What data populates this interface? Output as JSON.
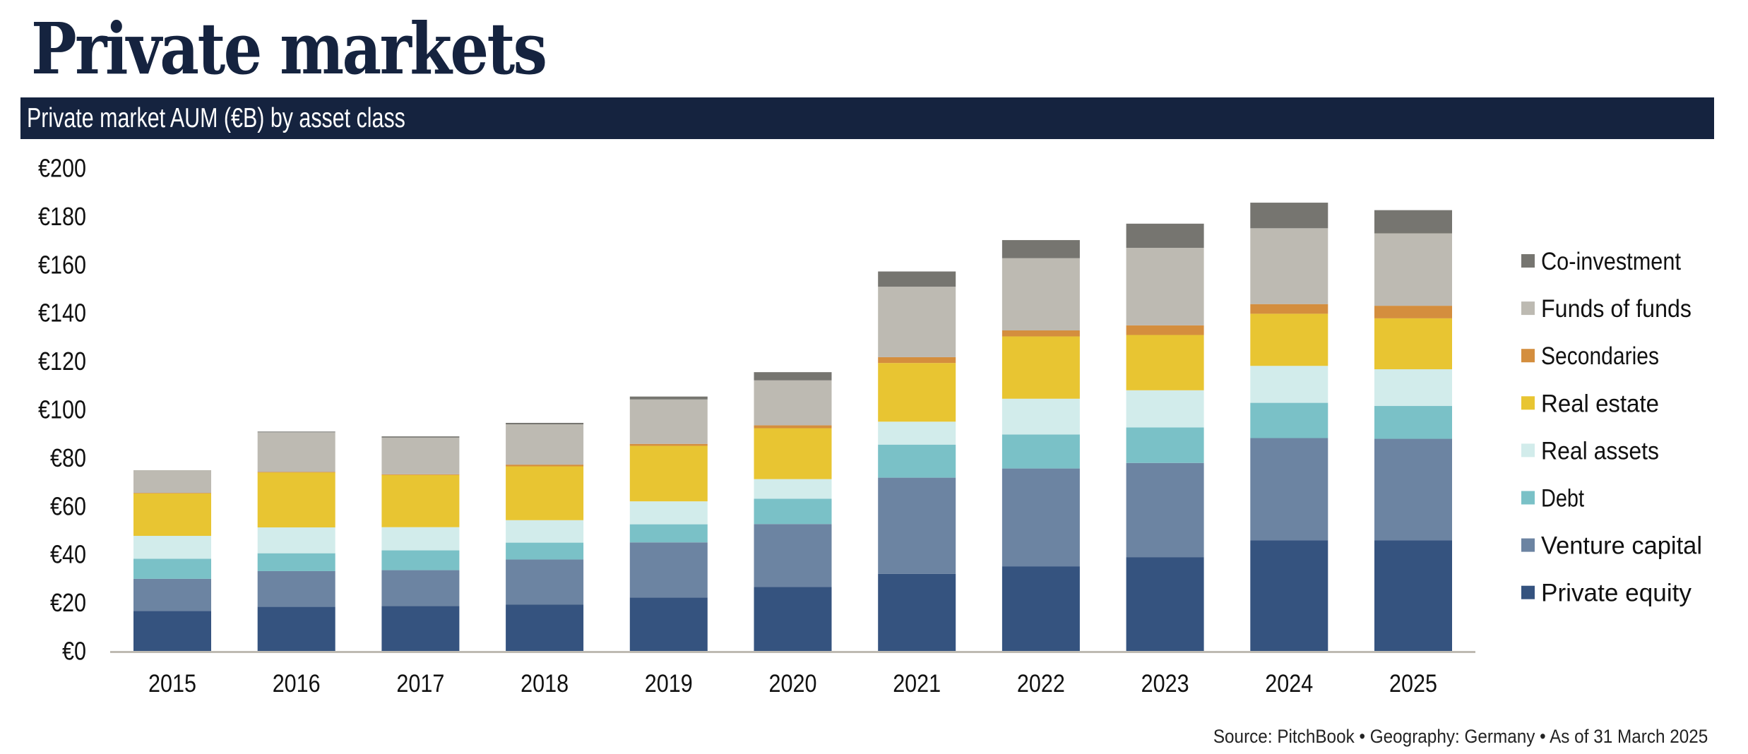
{
  "header": {
    "title": "Private markets",
    "chart_banner": "Private market AUM (€B) by asset class"
  },
  "footer": {
    "source": "Source: PitchBook • Geography: Germany • As of 31 March 2025"
  },
  "colors": {
    "title": "#15233F",
    "banner_bg": "#15233F",
    "axis": "#BEBAB2"
  },
  "chart_data": {
    "type": "bar",
    "stacked": true,
    "title": "Private market AUM (€B) by asset class",
    "xlabel": "",
    "ylabel": "",
    "ylim": [
      0,
      200
    ],
    "yticks": [
      0,
      20,
      40,
      60,
      80,
      100,
      120,
      140,
      160,
      180,
      200
    ],
    "ytick_labels": [
      "€0",
      "€20",
      "€40",
      "€60",
      "€80",
      "€100",
      "€120",
      "€140",
      "€160",
      "€180",
      "€200"
    ],
    "grid": false,
    "legend_position": "right",
    "categories": [
      "2015",
      "2016",
      "2017",
      "2018",
      "2019",
      "2020",
      "2021",
      "2022",
      "2023",
      "2024",
      "2025"
    ],
    "series": [
      {
        "name": "Private equity",
        "color": "#35537F",
        "values": [
          16.7,
          18.4,
          18.7,
          19.3,
          22.3,
          26.7,
          32.1,
          35.2,
          39.0,
          46.0,
          46.0
        ]
      },
      {
        "name": "Venture capital",
        "color": "#6C84A2",
        "values": [
          13.3,
          14.8,
          14.9,
          18.7,
          22.8,
          26.0,
          39.8,
          40.5,
          39.0,
          42.3,
          42.0
        ]
      },
      {
        "name": "Debt",
        "color": "#7AC1C7",
        "values": [
          8.3,
          7.4,
          8.2,
          7.0,
          7.5,
          10.5,
          13.7,
          14.1,
          14.7,
          14.6,
          13.6
        ]
      },
      {
        "name": "Real assets",
        "color": "#D2ECEB",
        "values": [
          9.5,
          10.7,
          9.6,
          9.3,
          9.5,
          8.1,
          9.5,
          14.8,
          15.4,
          15.3,
          15.2
        ]
      },
      {
        "name": "Real estate",
        "color": "#E8C532",
        "values": [
          17.6,
          22.8,
          21.6,
          22.3,
          23.0,
          21.1,
          24.3,
          25.8,
          22.9,
          21.6,
          21.1
        ]
      },
      {
        "name": "Secondaries",
        "color": "#D48E3E",
        "values": [
          0.2,
          0.2,
          0.3,
          0.7,
          0.8,
          1.2,
          2.4,
          2.5,
          4.0,
          4.0,
          5.2
        ]
      },
      {
        "name": "Funds of funds",
        "color": "#BDBAB2",
        "values": [
          9.4,
          16.4,
          15.2,
          16.7,
          18.4,
          18.6,
          29.2,
          29.9,
          32.1,
          31.4,
          30.0
        ]
      },
      {
        "name": "Co-investment",
        "color": "#767570",
        "values": [
          0.0,
          0.3,
          0.5,
          0.6,
          1.2,
          3.4,
          6.3,
          7.5,
          10.0,
          10.6,
          9.6
        ]
      }
    ],
    "legend_order": [
      "Co-investment",
      "Funds of funds",
      "Secondaries",
      "Real estate",
      "Real assets",
      "Debt",
      "Venture capital",
      "Private equity"
    ]
  }
}
